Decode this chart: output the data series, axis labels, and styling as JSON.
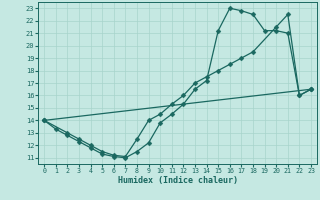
{
  "xlabel": "Humidex (Indice chaleur)",
  "xlim": [
    -0.5,
    23.5
  ],
  "ylim": [
    10.5,
    23.5
  ],
  "xticks": [
    0,
    1,
    2,
    3,
    4,
    5,
    6,
    7,
    8,
    9,
    10,
    11,
    12,
    13,
    14,
    15,
    16,
    17,
    18,
    19,
    20,
    21,
    22,
    23
  ],
  "yticks": [
    11,
    12,
    13,
    14,
    15,
    16,
    17,
    18,
    19,
    20,
    21,
    22,
    23
  ],
  "bg_color": "#c5e8e2",
  "grid_color": "#a8d4cc",
  "line_color": "#1a6860",
  "line1_x": [
    0,
    1,
    2,
    3,
    4,
    5,
    6,
    7,
    8,
    9,
    10,
    11,
    12,
    13,
    14,
    15,
    16,
    17,
    18,
    19,
    20,
    21,
    22,
    23
  ],
  "line1_y": [
    14,
    13.3,
    12.8,
    12.3,
    11.8,
    11.3,
    11.1,
    11.0,
    11.5,
    12.2,
    13.8,
    14.5,
    15.3,
    16.5,
    17.2,
    21.2,
    23.0,
    22.8,
    22.5,
    21.2,
    21.2,
    21.0,
    16.0,
    16.5
  ],
  "line2_x": [
    0,
    2,
    3,
    4,
    5,
    6,
    7,
    8,
    9,
    10,
    11,
    12,
    13,
    14,
    15,
    16,
    17,
    18,
    20,
    21,
    22,
    23
  ],
  "line2_y": [
    14,
    13.0,
    12.5,
    12.0,
    11.5,
    11.2,
    11.1,
    12.5,
    14.0,
    14.5,
    15.3,
    16.0,
    17.0,
    17.5,
    18.0,
    18.5,
    19.0,
    19.5,
    21.5,
    22.5,
    16.0,
    16.5
  ],
  "line3_x": [
    0,
    23
  ],
  "line3_y": [
    14,
    16.5
  ],
  "markersize": 2.5,
  "linewidth": 0.9
}
